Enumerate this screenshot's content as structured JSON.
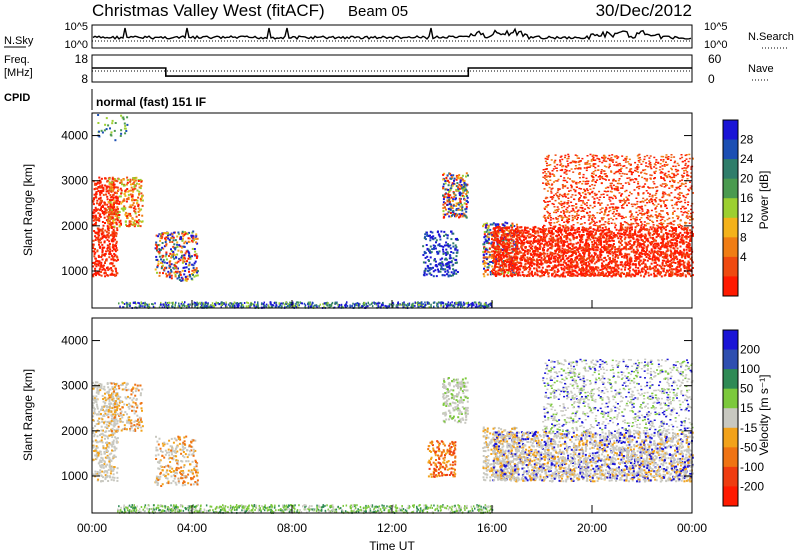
{
  "header": {
    "station": "Christmas Valley West (fitACF)",
    "beam": "Beam 05",
    "date": "30/Dec/2012"
  },
  "panels": {
    "nsky_label": "N.Sky",
    "nsky_ticks": [
      "10^5",
      "10^0"
    ],
    "nsearch_label": "N.Search",
    "nsearch_ticks": [
      "10^5",
      "10^0"
    ],
    "freq_label": [
      "Freq.",
      "[MHz]"
    ],
    "freq_ticks": [
      "18",
      "8"
    ],
    "nave_label": "Nave",
    "nave_ticks": [
      "60",
      "0"
    ],
    "cpid_label": "CPID",
    "cpid_text": "normal (fast) 151 IF"
  },
  "colors": {
    "frame": "#000000",
    "power_scale": [
      "#1a14d6",
      "#1c4fb3",
      "#2f7d6a",
      "#4a9a4f",
      "#9ccf30",
      "#f4b21a",
      "#f07d14",
      "#ef4a10",
      "#ff1a00"
    ],
    "velocity_scale": [
      "#1a14d6",
      "#2f4fb0",
      "#2f8a55",
      "#7cc93c",
      "#c8c8c0",
      "#f2a21a",
      "#ef7313",
      "#ef3c10",
      "#ff1a00"
    ]
  },
  "chart_data": [
    {
      "type": "line",
      "name": "N.Sky / N.Search",
      "ylim_label": [
        "10^0",
        "10^5"
      ]
    },
    {
      "type": "line",
      "name": "Freq / Nave",
      "x_unit": "hours UT",
      "series": [
        {
          "name": "Freq.",
          "x": [
            0.0,
            2.95,
            2.95,
            15.05,
            15.05,
            24.0
          ],
          "values": [
            13.2,
            13.2,
            10.2,
            10.2,
            13.2,
            13.2
          ]
        }
      ],
      "ylim": [
        8,
        18
      ]
    },
    {
      "type": "heatmap",
      "name": "Power",
      "ylabel": "Slant Range [km]",
      "colorbar_label": "Power [dB]",
      "colorbar_ticks": [
        "28",
        "24",
        "20",
        "16",
        "12",
        "8",
        "4"
      ],
      "yticks": [
        "4000",
        "3000",
        "2000",
        "1000"
      ],
      "ylim": [
        180,
        4500
      ],
      "xlim": [
        0,
        24
      ]
    },
    {
      "type": "heatmap",
      "name": "Velocity",
      "ylabel": "Slant Range [km]",
      "xlabel": "Time UT",
      "colorbar_label": "Velocity [m s⁻¹]",
      "colorbar_ticks": [
        "200",
        "100",
        "50",
        "15",
        "-15",
        "-50",
        "-100",
        "-200"
      ],
      "xticks": [
        "00:00",
        "04:00",
        "08:00",
        "12:00",
        "16:00",
        "20:00",
        "00:00"
      ],
      "yticks": [
        "4000",
        "3000",
        "2000",
        "1000"
      ],
      "ylim": [
        180,
        4500
      ],
      "xlim": [
        0,
        24
      ]
    }
  ]
}
